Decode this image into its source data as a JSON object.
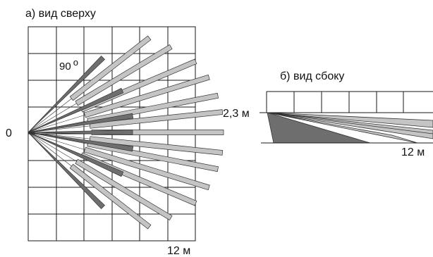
{
  "top_view": {
    "caption": "а) вид сверху",
    "origin_label": "0",
    "angle_label": "90",
    "angle_unit": "о",
    "distance_label": "12 м"
  },
  "side_view": {
    "caption": "б) вид сбоку",
    "height_label": "2,3 м",
    "distance_label": "12 м"
  },
  "colors": {
    "grid": "#1a1a1a",
    "beam_light": "#c4c4c4",
    "beam_dark": "#6e6e6e",
    "outline": "#333333",
    "background": "#ffffff"
  }
}
